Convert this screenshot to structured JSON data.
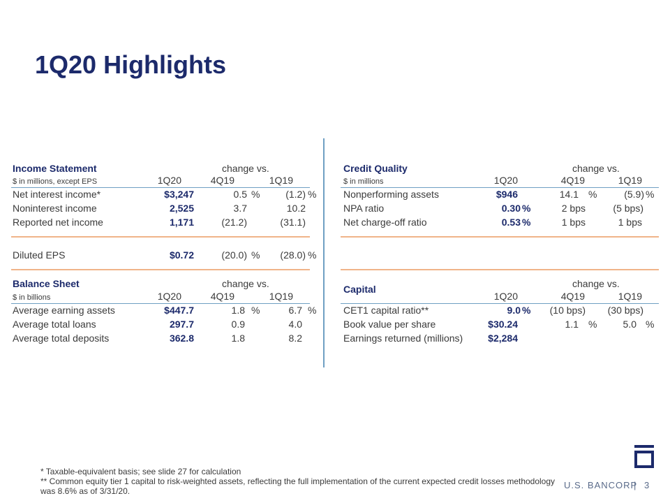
{
  "title": "1Q20 Highlights",
  "income_statement": {
    "title": "Income Statement",
    "subtitle": "$ in millions, except EPS",
    "change_vs": "change vs.",
    "col_headers": [
      "1Q20",
      "4Q19",
      "1Q19"
    ],
    "rows": [
      {
        "label": "Net interest income*",
        "cur": "$3,247",
        "v1": "0.5",
        "u1": "%",
        "v2": "(1.2)",
        "u2": "%"
      },
      {
        "label": "Noninterest income",
        "cur": "2,525",
        "v1": "3.7",
        "u1": "",
        "v2": "10.2",
        "u2": ""
      },
      {
        "label": "Reported net income",
        "cur": "1,171",
        "v1": "(21.2)",
        "u1": "",
        "v2": "(31.1)",
        "u2": ""
      }
    ],
    "eps_row": {
      "label": "Diluted EPS",
      "cur": "$0.72",
      "v1": "(20.0)",
      "u1": "%",
      "v2": "(28.0)",
      "u2": "%"
    }
  },
  "balance_sheet": {
    "title": "Balance Sheet",
    "subtitle": "$ in billions",
    "change_vs": "change vs.",
    "col_headers": [
      "1Q20",
      "4Q19",
      "1Q19"
    ],
    "rows": [
      {
        "label": "Average earning assets",
        "cur": "$447.7",
        "v1": "1.8",
        "u1": "%",
        "v2": "6.7",
        "u2": "%"
      },
      {
        "label": "Average total loans",
        "cur": "297.7",
        "v1": "0.9",
        "u1": "",
        "v2": "4.0",
        "u2": ""
      },
      {
        "label": "Average total deposits",
        "cur": "362.8",
        "v1": "1.8",
        "u1": "",
        "v2": "8.2",
        "u2": ""
      }
    ]
  },
  "credit_quality": {
    "title": "Credit Quality",
    "subtitle": "$ in millions",
    "change_vs": "change vs.",
    "col_headers": [
      "1Q20",
      "4Q19",
      "1Q19"
    ],
    "rows": [
      {
        "label": "Nonperforming assets",
        "cur": "$946",
        "cur_u": "",
        "v1": "14.1",
        "u1": "%",
        "v2": "(5.9)",
        "u2": "%"
      },
      {
        "label": "NPA ratio",
        "cur": "0.30",
        "cur_u": "%",
        "v1": "2 bps",
        "u1": "",
        "v2": "(5 bps)",
        "u2": ""
      },
      {
        "label": "Net charge-off ratio",
        "cur": "0.53",
        "cur_u": "%",
        "v1": "1 bps",
        "u1": "",
        "v2": "1 bps",
        "u2": ""
      }
    ]
  },
  "capital": {
    "title": "Capital",
    "change_vs": "change vs.",
    "col_headers": [
      "1Q20",
      "4Q19",
      "1Q19"
    ],
    "rows": [
      {
        "label": "CET1 capital ratio**",
        "cur": "9.0",
        "cur_u": "%",
        "v1": "(10 bps)",
        "u1": "",
        "v2": "(30 bps)",
        "u2": ""
      },
      {
        "label": "Book value per share",
        "cur": "$30.24",
        "cur_u": "",
        "v1": "1.1",
        "u1": "%",
        "v2": "5.0",
        "u2": "%"
      },
      {
        "label": "Earnings returned (millions)",
        "cur": "$2,284",
        "cur_u": "",
        "v1": "",
        "u1": "",
        "v2": "",
        "u2": ""
      }
    ]
  },
  "footnotes": {
    "line1": "* Taxable-equivalent basis; see slide 27 for calculation",
    "line2": "** Common equity tier 1 capital to risk-weighted assets, reflecting the full implementation of the current expected credit losses methodology was 8.6% as of 3/31/20."
  },
  "brand": {
    "name": "U.S. BANCORP",
    "separator": "|",
    "page": "3"
  },
  "colors": {
    "navy": "#1c2a6b",
    "blue_rule": "#6f9fc3",
    "orange_rule": "#f0b489",
    "text": "#3a3a3a"
  }
}
